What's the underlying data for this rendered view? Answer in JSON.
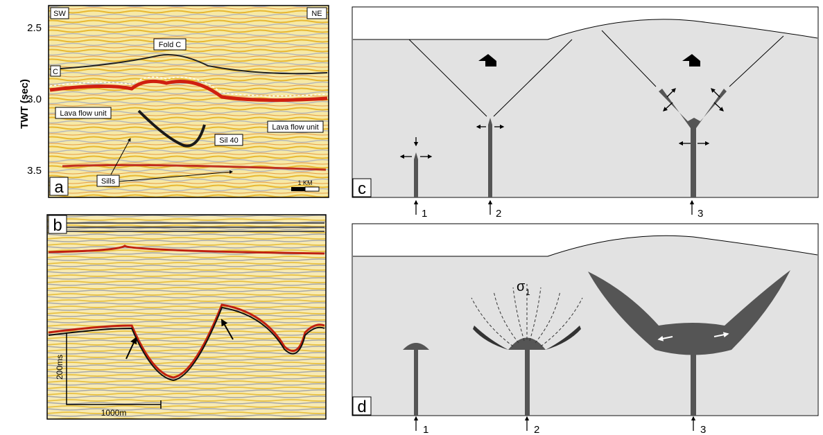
{
  "panel_a": {
    "label": "a",
    "axis_label": "TWT (sec)",
    "ticks": [
      "2.5",
      "3.0",
      "3.5"
    ],
    "annotations": {
      "sw": "SW",
      "ne": "NE",
      "fold": "Fold C",
      "horizon": "C",
      "lava_left": "Lava flow unit",
      "lava_right": "Lava flow unit",
      "sill": "Sil 40",
      "sills": "Sills",
      "scale": "1 KM"
    }
  },
  "panel_b": {
    "label": "b",
    "scale_vertical": "200ms",
    "scale_horizontal": "1000m"
  },
  "panel_c": {
    "label": "c",
    "feeders": [
      "1",
      "2",
      "3"
    ]
  },
  "panel_d": {
    "label": "d",
    "stress": "σ",
    "stress_subscript": "1",
    "feeders": [
      "1",
      "2",
      "3"
    ]
  }
}
